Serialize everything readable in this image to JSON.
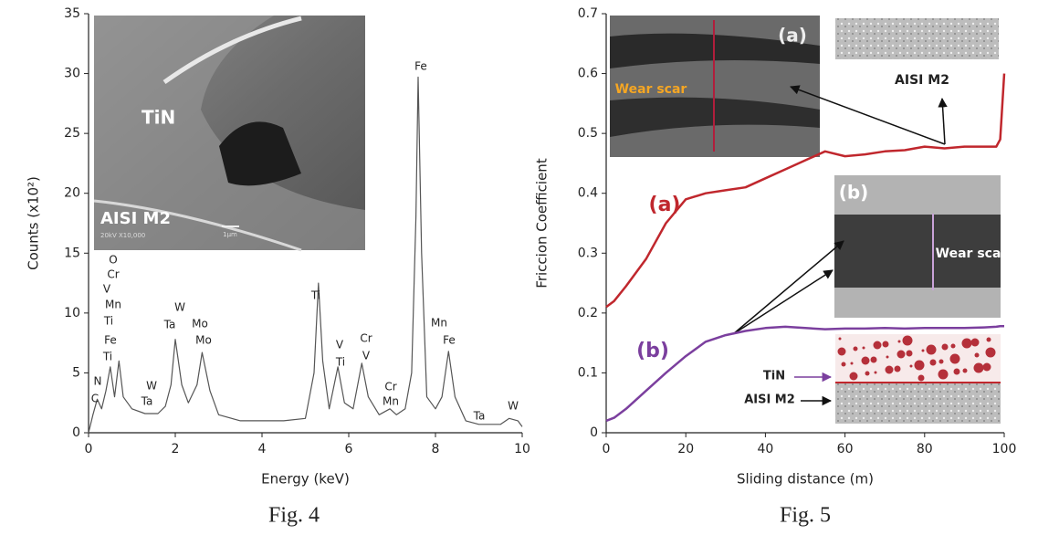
{
  "chart_data": [
    {
      "type": "line",
      "caption": "Fig. 4",
      "x_label": "Energy (keV)",
      "y_label": "Counts (x10²)",
      "xlim": [
        0,
        10
      ],
      "ylim": [
        0,
        35
      ],
      "xticks": [
        0,
        2,
        4,
        6,
        8,
        10
      ],
      "yticks": [
        0,
        5,
        10,
        15,
        20,
        25,
        30,
        35
      ],
      "x": [
        0,
        0.1,
        0.2,
        0.3,
        0.4,
        0.5,
        0.6,
        0.7,
        0.8,
        1.0,
        1.3,
        1.6,
        1.77,
        1.9,
        2.0,
        2.15,
        2.3,
        2.5,
        2.62,
        2.8,
        3.0,
        3.5,
        4.0,
        4.5,
        5.0,
        5.2,
        5.3,
        5.4,
        5.55,
        5.75,
        5.9,
        6.1,
        6.3,
        6.45,
        6.7,
        6.95,
        7.1,
        7.3,
        7.45,
        7.55,
        7.6,
        7.68,
        7.8,
        8.0,
        8.15,
        8.3,
        8.45,
        8.7,
        9.0,
        9.5,
        9.7,
        9.9,
        10
      ],
      "series": [
        {
          "color": "#555555",
          "values": [
            0,
            1.5,
            2.8,
            2.0,
            3.5,
            5.5,
            3.0,
            6.0,
            3.0,
            2.0,
            1.6,
            1.6,
            2.2,
            4.0,
            7.8,
            4.0,
            2.5,
            4.0,
            6.7,
            3.5,
            1.5,
            1.0,
            1.0,
            1.0,
            1.2,
            5.0,
            12.5,
            6.0,
            2.0,
            5.5,
            2.5,
            2.0,
            5.8,
            3.0,
            1.5,
            2.0,
            1.5,
            2.0,
            5.0,
            18.0,
            29.7,
            15.0,
            3.0,
            2.0,
            3.0,
            6.8,
            3.0,
            1.0,
            0.7,
            0.7,
            1.2,
            1.0,
            0.5
          ]
        }
      ],
      "peak_labels": [
        "N",
        "C",
        "O",
        "Cr",
        "V",
        "Mn",
        "Ti",
        "Fe",
        "Ti",
        "W",
        "Ta",
        "W",
        "Ta",
        "Mo",
        "Mo",
        "Ti",
        "V",
        "Ti",
        "Cr",
        "V",
        "Cr",
        "Mn",
        "Fe",
        "Mn",
        "Fe",
        "Ta",
        "W"
      ],
      "inset_labels": [
        "TiN",
        "AISI M2",
        "20kV  X10,000",
        "1μm"
      ]
    },
    {
      "type": "line",
      "caption": "Fig. 5",
      "x_label": "Sliding distance (m)",
      "y_label": "Friccion Coefficient",
      "xlim": [
        0,
        100
      ],
      "ylim": [
        0,
        0.7
      ],
      "xticks": [
        0,
        20,
        40,
        60,
        80,
        100
      ],
      "yticks": [
        0,
        0.1,
        0.2,
        0.3,
        0.4,
        0.5,
        0.6,
        0.7
      ],
      "x": [
        0,
        2,
        5,
        10,
        15,
        20,
        25,
        30,
        35,
        40,
        45,
        50,
        55,
        60,
        65,
        70,
        75,
        80,
        85,
        90,
        95,
        98,
        99,
        100
      ],
      "series": [
        {
          "name": "(a)",
          "color": "#c0272d",
          "values": [
            0.21,
            0.22,
            0.245,
            0.29,
            0.35,
            0.39,
            0.4,
            0.405,
            0.41,
            0.425,
            0.44,
            0.455,
            0.47,
            0.462,
            0.465,
            0.47,
            0.472,
            0.478,
            0.475,
            0.478,
            0.478,
            0.478,
            0.49,
            0.6
          ]
        },
        {
          "name": "(b)",
          "color": "#7b3f9e",
          "values": [
            0.02,
            0.025,
            0.04,
            0.07,
            0.1,
            0.128,
            0.152,
            0.163,
            0.17,
            0.175,
            0.177,
            0.175,
            0.173,
            0.174,
            0.174,
            0.175,
            0.174,
            0.175,
            0.175,
            0.175,
            0.176,
            0.177,
            0.178,
            0.178
          ]
        }
      ],
      "annotations": [
        "(a)",
        "Wear scar",
        "AISI M2",
        "(b)",
        "Wear scar",
        "TiN",
        "AISI M2"
      ]
    }
  ]
}
